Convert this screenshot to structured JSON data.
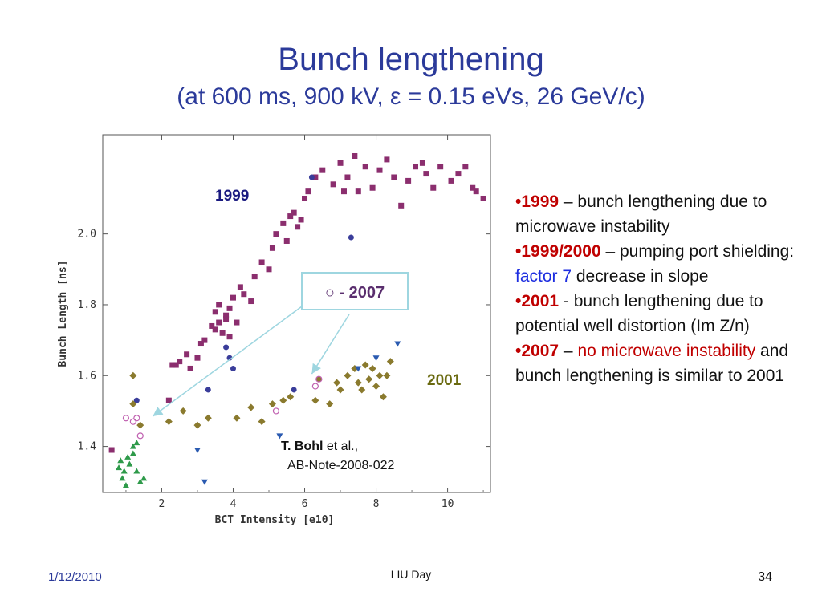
{
  "slide": {
    "title": "Bunch lengthening",
    "subtitle": "(at 600 ms,  900 kV,  ε = 0.15 eVs, 26 GeV/c)",
    "date": "1/12/2010",
    "footer": "LIU Day",
    "number": "34"
  },
  "bullets": [
    {
      "marker": "•",
      "emph": "1999",
      "text": " – bunch lengthening due to microwave instability"
    },
    {
      "marker": "•",
      "emph": "1999/2000",
      "text": " – pumping port shielding: ",
      "highlight": "factor 7",
      "tail": " decrease in slope"
    },
    {
      "marker": "•",
      "emph": "2001",
      "text": " - bunch lengthening due to potential well distortion (Im Z/n)"
    },
    {
      "marker": "•",
      "emph": "2007",
      "text": " – ",
      "highlight": "no microwave instability",
      "tail": " and bunch lengthening is similar to 2001"
    }
  ],
  "colors": {
    "title": "#2b3a9a",
    "emph": "#c00000",
    "highlight_blue": "#1e2ee0",
    "s1999": "#8b2e6e",
    "s1999_2000": "#3a3d9a",
    "s2001": "#8a7a2e",
    "s2007": "#c060b0",
    "tri_green": "#2e9a4a",
    "tri_blue": "#2a5ab0",
    "callout_border": "#9ed6e0"
  },
  "chart_data": {
    "type": "scatter",
    "xlabel": "BCT Intensity [e10]",
    "ylabel": "Bunch Length [ns]",
    "xlim": [
      0.35,
      11.2
    ],
    "ylim": [
      1.27,
      2.28
    ],
    "xticks": [
      2,
      4,
      6,
      8,
      10
    ],
    "yticks": [
      "1.4",
      "1.6",
      "1.8",
      "2.0"
    ],
    "labels": {
      "y1999": "1999",
      "y2001": "2001",
      "callout": "○ - 2007",
      "ref_author": "T. Bohl",
      "ref_etal": " et al.,",
      "ref_note": "AB-Note-2008-022"
    },
    "series": [
      {
        "name": "1999",
        "marker": "square",
        "points": [
          [
            0.6,
            1.39
          ],
          [
            2.2,
            1.53
          ],
          [
            2.3,
            1.63
          ],
          [
            2.4,
            1.63
          ],
          [
            2.5,
            1.64
          ],
          [
            2.7,
            1.66
          ],
          [
            2.8,
            1.62
          ],
          [
            3.0,
            1.65
          ],
          [
            3.1,
            1.69
          ],
          [
            3.2,
            1.7
          ],
          [
            3.4,
            1.74
          ],
          [
            3.5,
            1.73
          ],
          [
            3.6,
            1.75
          ],
          [
            3.7,
            1.72
          ],
          [
            3.8,
            1.76
          ],
          [
            3.9,
            1.71
          ],
          [
            4.1,
            1.75
          ],
          [
            3.5,
            1.78
          ],
          [
            3.6,
            1.8
          ],
          [
            3.8,
            1.77
          ],
          [
            3.9,
            1.79
          ],
          [
            4.0,
            1.82
          ],
          [
            4.2,
            1.85
          ],
          [
            4.3,
            1.83
          ],
          [
            4.5,
            1.81
          ],
          [
            4.6,
            1.88
          ],
          [
            4.8,
            1.92
          ],
          [
            5.0,
            1.9
          ],
          [
            5.1,
            1.96
          ],
          [
            5.2,
            2.0
          ],
          [
            5.4,
            2.03
          ],
          [
            5.5,
            1.98
          ],
          [
            5.6,
            2.05
          ],
          [
            5.7,
            2.06
          ],
          [
            5.8,
            2.02
          ],
          [
            5.9,
            2.04
          ],
          [
            6.0,
            2.1
          ],
          [
            6.1,
            2.12
          ],
          [
            6.3,
            2.16
          ],
          [
            6.5,
            2.18
          ],
          [
            6.8,
            2.14
          ],
          [
            7.0,
            2.2
          ],
          [
            7.1,
            2.12
          ],
          [
            7.2,
            2.16
          ],
          [
            7.4,
            2.22
          ],
          [
            7.5,
            2.12
          ],
          [
            7.7,
            2.19
          ],
          [
            7.9,
            2.13
          ],
          [
            8.1,
            2.18
          ],
          [
            8.3,
            2.21
          ],
          [
            8.5,
            2.16
          ],
          [
            8.7,
            2.08
          ],
          [
            8.9,
            2.15
          ],
          [
            9.1,
            2.19
          ],
          [
            9.3,
            2.2
          ],
          [
            9.4,
            2.17
          ],
          [
            9.6,
            2.13
          ],
          [
            9.8,
            2.19
          ],
          [
            10.1,
            2.15
          ],
          [
            10.3,
            2.17
          ],
          [
            10.5,
            2.19
          ],
          [
            10.8,
            2.12
          ],
          [
            11.0,
            2.1
          ],
          [
            10.7,
            2.13
          ]
        ]
      },
      {
        "name": "1999/2000",
        "marker": "circle",
        "points": [
          [
            1.3,
            1.53
          ],
          [
            3.3,
            1.56
          ],
          [
            3.8,
            1.68
          ],
          [
            3.9,
            1.65
          ],
          [
            4.0,
            1.62
          ],
          [
            5.7,
            1.56
          ],
          [
            6.2,
            2.16
          ],
          [
            7.3,
            1.99
          ]
        ]
      },
      {
        "name": "2001",
        "marker": "diamond",
        "points": [
          [
            1.2,
            1.6
          ],
          [
            1.2,
            1.52
          ],
          [
            1.4,
            1.46
          ],
          [
            2.2,
            1.47
          ],
          [
            2.6,
            1.5
          ],
          [
            3.0,
            1.46
          ],
          [
            3.3,
            1.48
          ],
          [
            4.1,
            1.48
          ],
          [
            4.5,
            1.51
          ],
          [
            4.8,
            1.47
          ],
          [
            5.1,
            1.52
          ],
          [
            5.4,
            1.53
          ],
          [
            5.6,
            1.54
          ],
          [
            6.3,
            1.53
          ],
          [
            6.4,
            1.59
          ],
          [
            6.7,
            1.52
          ],
          [
            6.9,
            1.58
          ],
          [
            7.0,
            1.56
          ],
          [
            7.2,
            1.6
          ],
          [
            7.4,
            1.62
          ],
          [
            7.5,
            1.58
          ],
          [
            7.6,
            1.56
          ],
          [
            7.7,
            1.63
          ],
          [
            7.8,
            1.59
          ],
          [
            7.9,
            1.62
          ],
          [
            8.0,
            1.57
          ],
          [
            8.1,
            1.6
          ],
          [
            8.2,
            1.54
          ],
          [
            8.3,
            1.6
          ],
          [
            8.4,
            1.64
          ]
        ]
      },
      {
        "name": "2007",
        "marker": "open-circle",
        "points": [
          [
            1.0,
            1.48
          ],
          [
            1.2,
            1.47
          ],
          [
            1.3,
            1.48
          ],
          [
            1.4,
            1.43
          ],
          [
            5.2,
            1.5
          ],
          [
            6.3,
            1.57
          ],
          [
            6.4,
            1.59
          ]
        ]
      },
      {
        "name": "green triangles",
        "marker": "triangle-up",
        "points": [
          [
            0.8,
            1.34
          ],
          [
            0.85,
            1.36
          ],
          [
            0.9,
            1.31
          ],
          [
            0.95,
            1.33
          ],
          [
            1.0,
            1.29
          ],
          [
            1.05,
            1.37
          ],
          [
            1.1,
            1.35
          ],
          [
            1.2,
            1.38
          ],
          [
            1.3,
            1.33
          ],
          [
            1.4,
            1.3
          ],
          [
            1.5,
            1.31
          ],
          [
            1.2,
            1.4
          ],
          [
            1.3,
            1.41
          ]
        ]
      },
      {
        "name": "blue triangles",
        "marker": "triangle-down",
        "points": [
          [
            3.2,
            1.3
          ],
          [
            3.0,
            1.39
          ],
          [
            5.3,
            1.43
          ],
          [
            7.5,
            1.62
          ],
          [
            8.0,
            1.65
          ],
          [
            8.6,
            1.69
          ]
        ]
      }
    ]
  }
}
